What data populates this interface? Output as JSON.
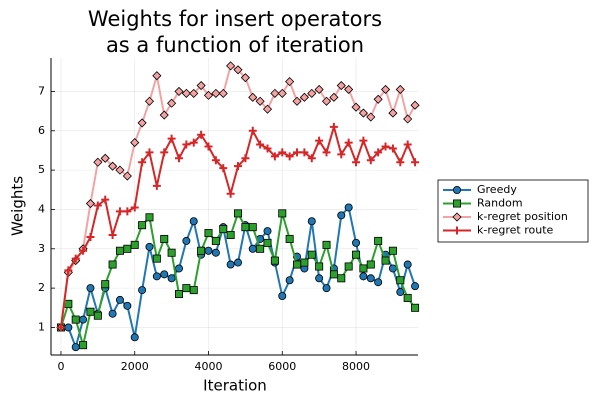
{
  "chart_data": {
    "type": "line",
    "title": [
      "Weights for insert operators",
      "as a function of iteration"
    ],
    "x_label": "Iteration",
    "y_label": "Weights",
    "x": [
      0,
      200,
      400,
      600,
      800,
      1000,
      1200,
      1400,
      1600,
      1800,
      2000,
      2200,
      2400,
      2600,
      2800,
      3000,
      3200,
      3400,
      3600,
      3800,
      4000,
      4200,
      4400,
      4600,
      4800,
      5000,
      5200,
      5400,
      5600,
      5800,
      6000,
      6200,
      6400,
      6600,
      6800,
      7000,
      7200,
      7400,
      7600,
      7800,
      8000,
      8200,
      8400,
      8600,
      8800,
      9000,
      9200,
      9400,
      9600
    ],
    "series": [
      {
        "name": "Greedy",
        "color": "#1f77b4",
        "marker": "circle",
        "values": [
          1,
          1.0,
          0.5,
          1.2,
          2.0,
          1.35,
          2.0,
          1.35,
          1.7,
          1.55,
          0.75,
          1.95,
          3.05,
          2.3,
          2.35,
          2.25,
          2.5,
          3.2,
          3.7,
          2.85,
          2.95,
          2.9,
          3.55,
          2.6,
          2.65,
          3.6,
          3.0,
          3.25,
          3.45,
          2.65,
          1.8,
          2.2,
          2.8,
          2.5,
          3.7,
          2.25,
          2.0,
          2.5,
          3.85,
          4.05,
          3.15,
          2.3,
          2.25,
          2.15,
          2.85,
          2.5,
          1.9,
          2.6,
          2.05
        ]
      },
      {
        "name": "Random",
        "color": "#2ca02c",
        "marker": "square",
        "values": [
          1,
          1.6,
          1.2,
          0.55,
          1.4,
          1.3,
          2.1,
          2.6,
          2.95,
          3.0,
          3.1,
          3.6,
          3.8,
          2.75,
          3.25,
          2.9,
          1.85,
          2.0,
          1.95,
          2.95,
          3.4,
          3.2,
          3.5,
          3.35,
          3.9,
          3.55,
          3.55,
          3.0,
          3.15,
          2.7,
          3.9,
          3.25,
          2.6,
          2.65,
          2.85,
          2.55,
          3.1,
          2.35,
          2.25,
          2.55,
          2.85,
          2.5,
          2.6,
          3.2,
          2.7,
          2.95,
          2.2,
          1.75,
          1.5
        ]
      },
      {
        "name": "k-regret position",
        "color": "#f4a3a3",
        "marker": "diamond",
        "values": [
          1,
          2.4,
          2.7,
          3.0,
          4.15,
          5.2,
          5.3,
          5.1,
          5.0,
          4.85,
          5.7,
          6.2,
          6.75,
          7.4,
          6.4,
          6.7,
          7.0,
          6.95,
          6.95,
          7.15,
          6.9,
          6.95,
          6.95,
          7.65,
          7.55,
          7.35,
          6.85,
          6.75,
          6.55,
          6.95,
          6.95,
          7.25,
          6.75,
          6.85,
          6.95,
          7.05,
          6.75,
          6.85,
          7.15,
          7.05,
          6.6,
          6.45,
          6.35,
          6.8,
          7.05,
          6.45,
          7.05,
          6.3,
          6.65
        ]
      },
      {
        "name": "k-regret route",
        "color": "#d62728",
        "marker": "cross",
        "values": [
          1,
          2.45,
          2.75,
          2.95,
          3.3,
          4.1,
          4.25,
          3.35,
          3.95,
          3.95,
          4.05,
          5.2,
          5.45,
          4.6,
          5.45,
          5.8,
          5.3,
          5.65,
          5.7,
          5.9,
          5.6,
          5.25,
          5.05,
          4.4,
          5.1,
          5.3,
          6.0,
          5.65,
          5.55,
          5.35,
          5.45,
          5.35,
          5.45,
          5.45,
          5.3,
          5.75,
          5.45,
          6.1,
          5.4,
          5.7,
          5.2,
          5.75,
          5.25,
          5.45,
          5.6,
          5.55,
          5.2,
          5.65,
          5.2
        ]
      }
    ],
    "xlim": [
      -270,
      9680
    ],
    "ylim": [
      0.3,
      7.85
    ],
    "xticks": [
      0,
      2000,
      4000,
      6000,
      8000
    ],
    "yticks": [
      1,
      2,
      3,
      4,
      5,
      6,
      7
    ],
    "grid": true,
    "legend": "right"
  }
}
